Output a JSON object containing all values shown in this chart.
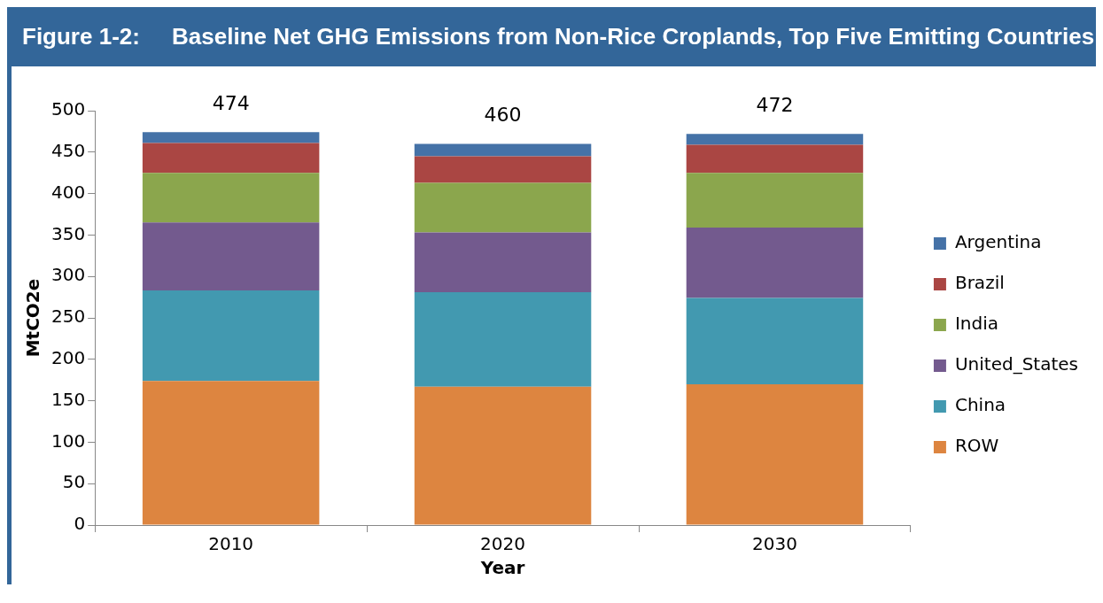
{
  "chart_data": {
    "type": "bar",
    "title": "Figure 1-2:     Baseline Net GHG Emissions from Non-Rice Croplands, Top Five Emitting Countries",
    "xlabel": "Year",
    "ylabel": "MtCO2e",
    "categories": [
      "2010",
      "2020",
      "2030"
    ],
    "stacked": true,
    "series": [
      {
        "name": "ROW",
        "color": "#dd8540",
        "values": [
          174,
          167,
          170
        ]
      },
      {
        "name": "China",
        "color": "#4299b0",
        "values": [
          109,
          114,
          104
        ]
      },
      {
        "name": "United_States",
        "color": "#735a8e",
        "values": [
          82,
          72,
          85
        ]
      },
      {
        "name": "India",
        "color": "#8ba64d",
        "values": [
          60,
          60,
          66
        ]
      },
      {
        "name": "Brazil",
        "color": "#aa4643",
        "values": [
          36,
          32,
          34
        ]
      },
      {
        "name": "Argentina",
        "color": "#4572a7",
        "values": [
          13,
          15,
          13
        ]
      }
    ],
    "totals": [
      "474",
      "460",
      "472"
    ],
    "ylim": [
      0,
      500
    ],
    "yticks": [
      0,
      50,
      100,
      150,
      200,
      250,
      300,
      350,
      400,
      450,
      500
    ],
    "grid": false,
    "legend": "right"
  }
}
